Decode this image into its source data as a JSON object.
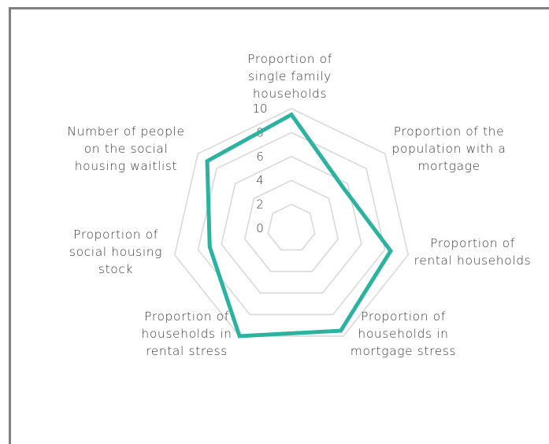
{
  "chart_data": {
    "type": "radar",
    "axes": [
      [
        "Proportion of",
        "single family",
        "households"
      ],
      [
        "Proportion of the",
        "population with a",
        "mortgage"
      ],
      [
        "Proportion of",
        "rental households"
      ],
      [
        "Proportion of",
        "households in",
        "mortgage stress"
      ],
      [
        "Proportion of",
        "households in",
        "rental stress"
      ],
      [
        "Proportion of",
        "social housing",
        "stock"
      ],
      [
        "Number of people",
        "on the social",
        "housing waitlist"
      ]
    ],
    "values": [
      9.5,
      5.5,
      8.5,
      9.5,
      10,
      7,
      9
    ],
    "rlim": [
      0,
      10
    ],
    "ticks": [
      "0",
      "2",
      "4",
      "6",
      "8",
      "10"
    ],
    "grid": true,
    "colors": {
      "series": "#2bb3a0",
      "grid": "#d9d9d9"
    }
  }
}
